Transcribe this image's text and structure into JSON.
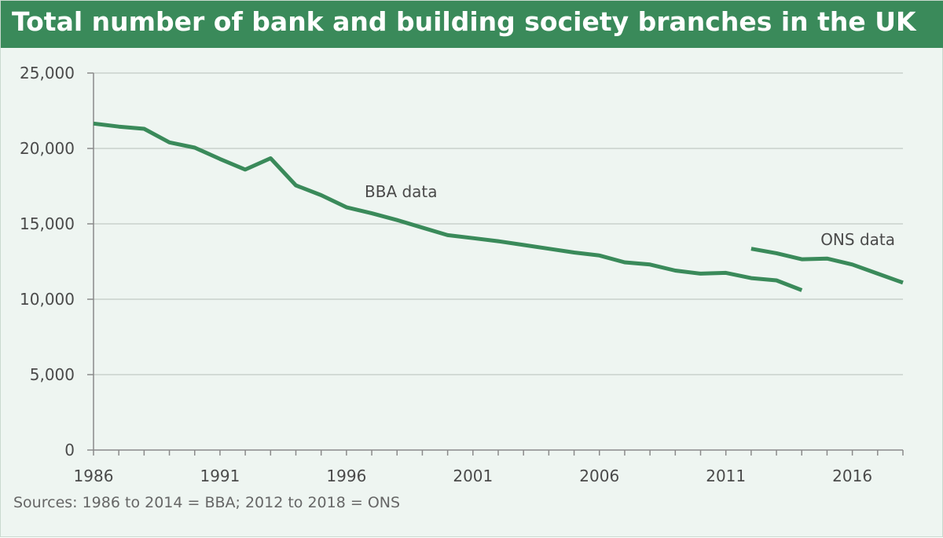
{
  "chart_data": {
    "type": "line",
    "title": "Total number of bank and building society branches in the UK",
    "xlabel": "",
    "ylabel": "",
    "xlim": [
      1986,
      2018
    ],
    "ylim": [
      0,
      25000
    ],
    "x_ticks": [
      1986,
      1991,
      1996,
      2001,
      2006,
      2011,
      2016
    ],
    "x_tick_labels": [
      "1986",
      "1991",
      "1996",
      "2001",
      "2006",
      "2011",
      "2016"
    ],
    "y_ticks": [
      0,
      5000,
      10000,
      15000,
      20000,
      25000
    ],
    "y_tick_labels": [
      "0",
      "5,000",
      "10,000",
      "15,000",
      "20,000",
      "25,000"
    ],
    "grid": true,
    "series": [
      {
        "name": "BBA data",
        "color": "#3a8a5a",
        "x": [
          1986,
          1987,
          1988,
          1989,
          1990,
          1991,
          1992,
          1993,
          1994,
          1995,
          1996,
          1997,
          1998,
          1999,
          2000,
          2001,
          2002,
          2003,
          2004,
          2005,
          2006,
          2007,
          2008,
          2009,
          2010,
          2011,
          2012,
          2013,
          2014
        ],
        "values": [
          21650,
          21450,
          21300,
          20400,
          20050,
          19300,
          18600,
          19350,
          17550,
          16900,
          16100,
          15700,
          15250,
          14750,
          14250,
          14050,
          13850,
          13600,
          13350,
          13100,
          12900,
          12450,
          12300,
          11900,
          11700,
          11750,
          11400,
          11250,
          10600
        ]
      },
      {
        "name": "ONS data",
        "color": "#3a8a5a",
        "x": [
          2012,
          2013,
          2014,
          2015,
          2016,
          2017,
          2018
        ],
        "values": [
          13350,
          13050,
          12650,
          12700,
          12300,
          11700,
          11100
        ]
      }
    ]
  },
  "source_note": "Sources: 1986 to 2014 = BBA; 2012 to 2018 = ONS"
}
